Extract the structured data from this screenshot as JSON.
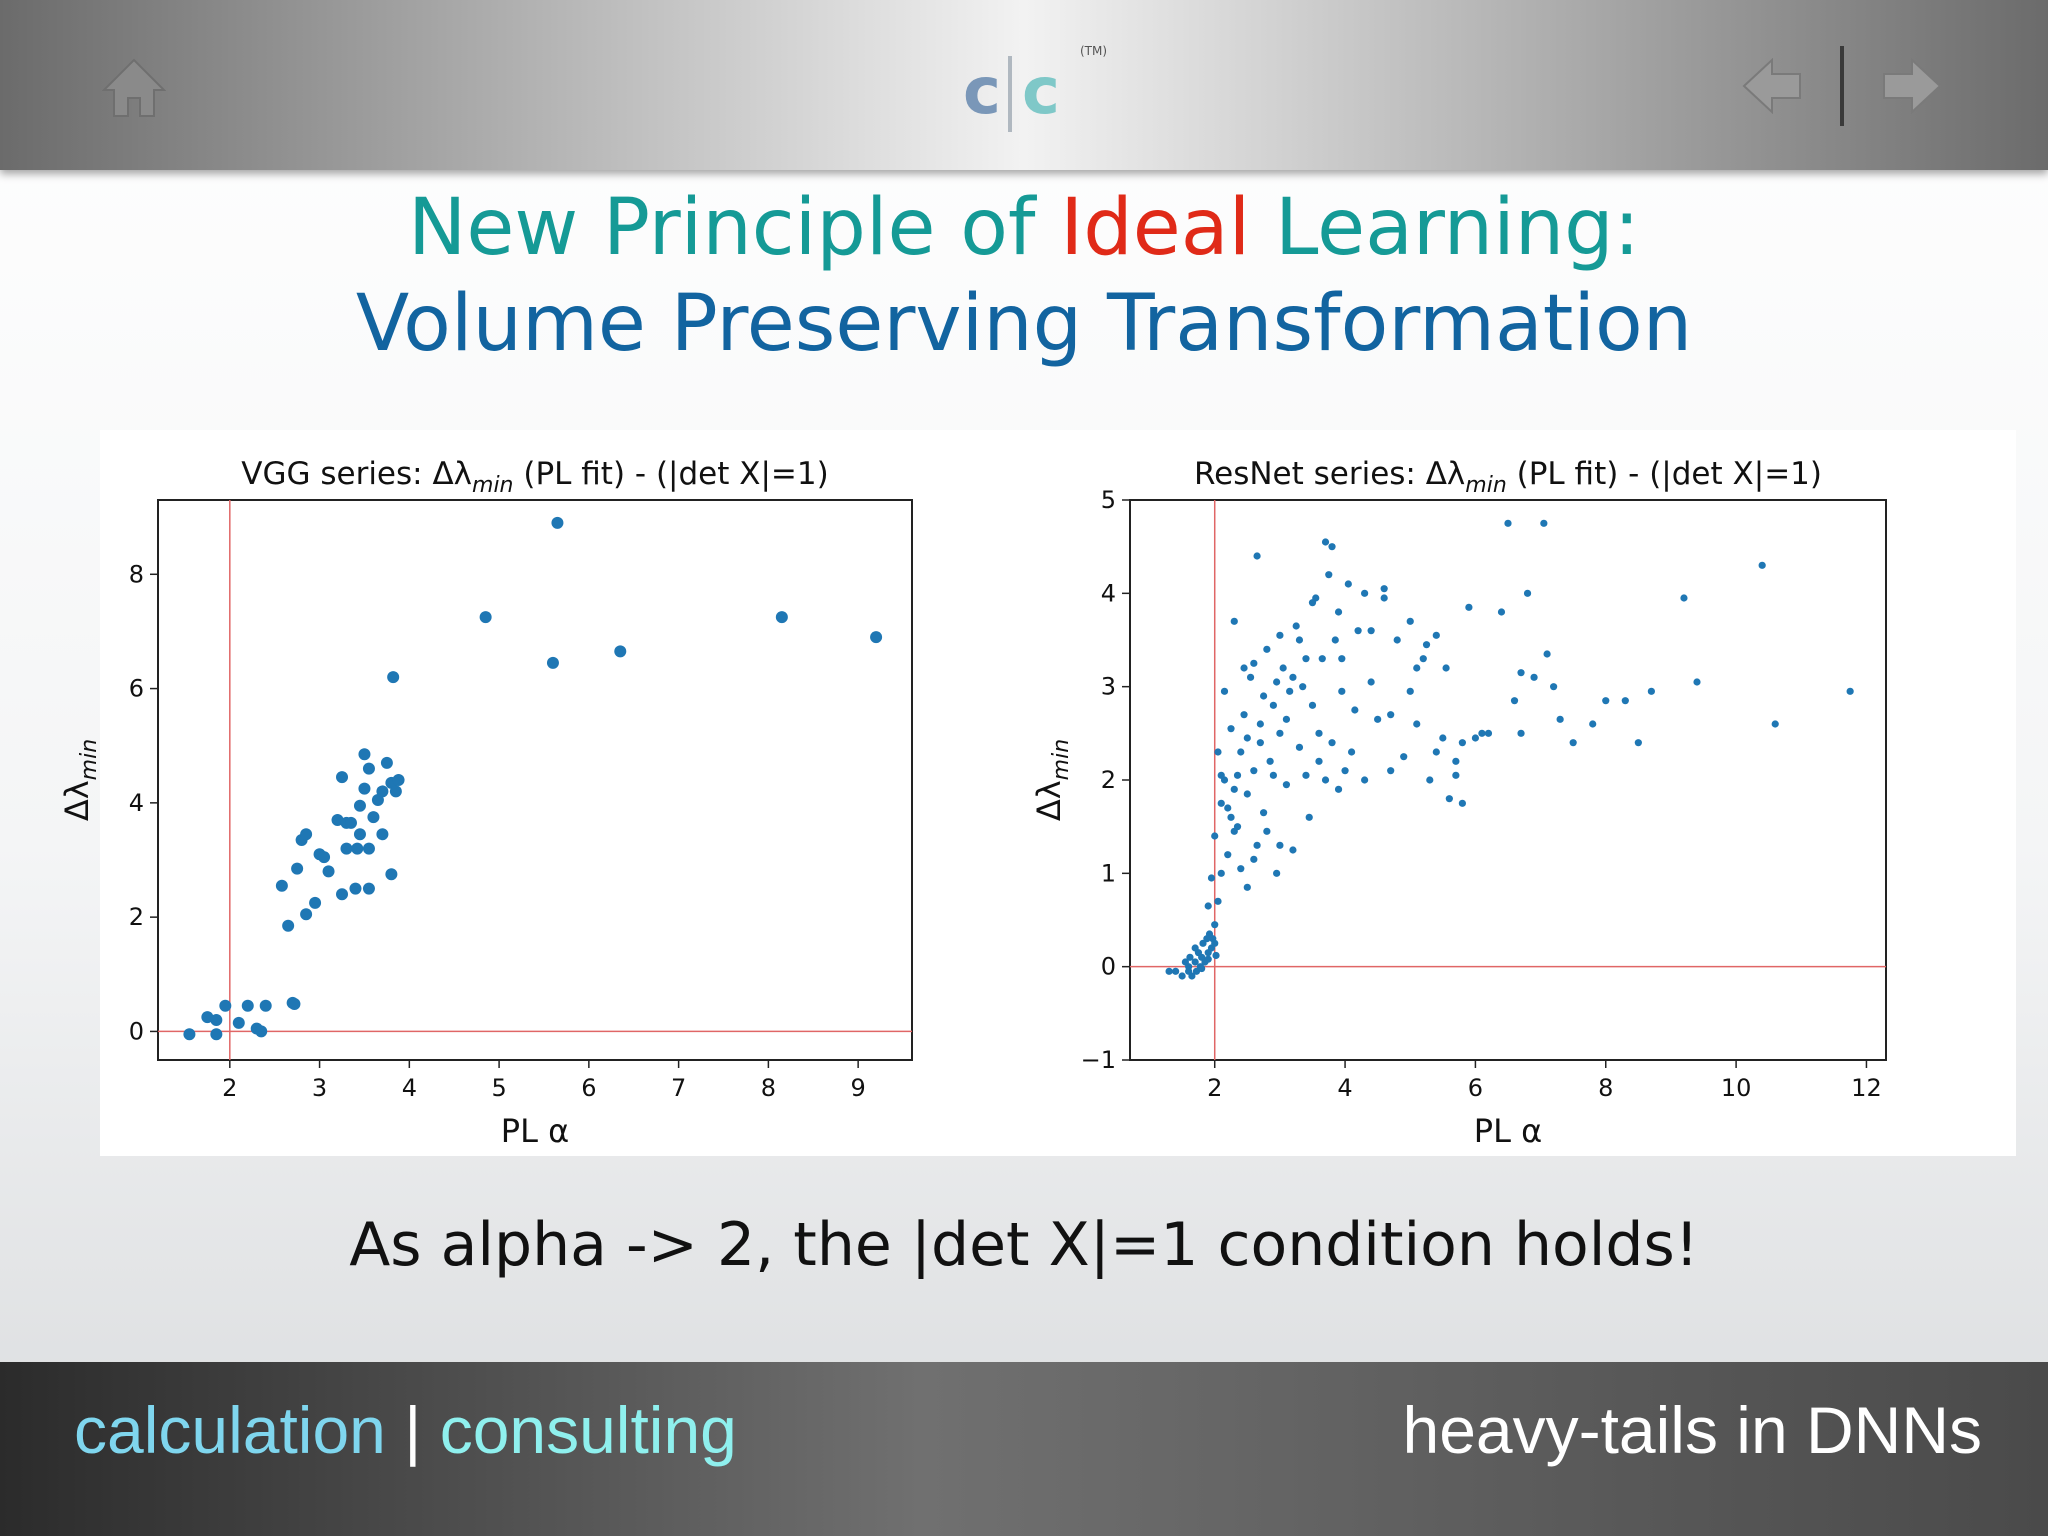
{
  "header": {
    "logo_c1": "c",
    "logo_c2": "c",
    "logo_tm": "(TM)"
  },
  "title": {
    "line1_pre": "New Principle of ",
    "line1_highlight": "Ideal",
    "line1_post": " Learning:",
    "line2": "Volume Preserving Transformation"
  },
  "caption": "As alpha -> 2, the |det X|=1 condition holds!",
  "footer": {
    "left_word1": "calculation",
    "left_sep": " | ",
    "left_word2": "consulting",
    "right": "heavy-tails in DNNs"
  },
  "colors": {
    "title_teal": "#159a96",
    "title_red": "#e02a18",
    "title_blue": "#1264a0",
    "point": "#1f77b4",
    "refline": "#e06666"
  },
  "chart_data": [
    {
      "type": "scatter",
      "title": "VGG series: Δλmin (PL fit) - (|det X|=1)",
      "xlabel": "PL α",
      "ylabel": "Δλmin",
      "xlim": [
        1.2,
        9.6
      ],
      "ylim": [
        -0.5,
        9.3
      ],
      "xticks": [
        2,
        3,
        4,
        5,
        6,
        7,
        8,
        9
      ],
      "yticks": [
        0,
        2,
        4,
        6,
        8
      ],
      "vline": 2,
      "hline": 0,
      "grid": false,
      "points": [
        [
          1.55,
          -0.05
        ],
        [
          1.75,
          0.25
        ],
        [
          1.85,
          0.2
        ],
        [
          1.85,
          -0.05
        ],
        [
          1.95,
          0.45
        ],
        [
          2.1,
          0.15
        ],
        [
          2.2,
          0.45
        ],
        [
          2.3,
          0.05
        ],
        [
          2.35,
          0.0
        ],
        [
          2.4,
          0.45
        ],
        [
          2.7,
          0.5
        ],
        [
          2.72,
          0.48
        ],
        [
          2.58,
          2.55
        ],
        [
          2.65,
          1.85
        ],
        [
          2.75,
          2.85
        ],
        [
          2.85,
          2.05
        ],
        [
          2.8,
          3.35
        ],
        [
          2.85,
          3.45
        ],
        [
          2.95,
          2.25
        ],
        [
          3.0,
          3.1
        ],
        [
          3.05,
          3.05
        ],
        [
          3.1,
          2.8
        ],
        [
          3.2,
          3.7
        ],
        [
          3.25,
          4.45
        ],
        [
          3.25,
          2.4
        ],
        [
          3.3,
          3.65
        ],
        [
          3.3,
          3.2
        ],
        [
          3.35,
          3.65
        ],
        [
          3.4,
          2.5
        ],
        [
          3.42,
          3.2
        ],
        [
          3.45,
          3.45
        ],
        [
          3.45,
          3.95
        ],
        [
          3.5,
          4.85
        ],
        [
          3.5,
          4.25
        ],
        [
          3.55,
          3.2
        ],
        [
          3.55,
          2.5
        ],
        [
          3.55,
          4.6
        ],
        [
          3.6,
          3.75
        ],
        [
          3.65,
          4.05
        ],
        [
          3.7,
          3.45
        ],
        [
          3.7,
          4.2
        ],
        [
          3.75,
          4.7
        ],
        [
          3.8,
          4.35
        ],
        [
          3.8,
          2.75
        ],
        [
          3.85,
          4.2
        ],
        [
          3.88,
          4.4
        ],
        [
          3.82,
          6.2
        ],
        [
          4.85,
          7.25
        ],
        [
          5.6,
          6.45
        ],
        [
          5.65,
          8.9
        ],
        [
          6.35,
          6.65
        ],
        [
          8.15,
          7.25
        ],
        [
          9.2,
          6.9
        ]
      ]
    },
    {
      "type": "scatter",
      "title": "ResNet series: Δλmin (PL fit) - (|det X|=1)",
      "xlabel": "PL α",
      "ylabel": "Δλmin",
      "xlim": [
        0.7,
        12.3
      ],
      "ylim": [
        -1,
        5
      ],
      "xticks": [
        2,
        4,
        6,
        8,
        10,
        12
      ],
      "yticks": [
        -1,
        0,
        1,
        2,
        3,
        4,
        5
      ],
      "vline": 2,
      "hline": 0,
      "grid": false,
      "points": [
        [
          1.3,
          -0.05
        ],
        [
          1.4,
          -0.05
        ],
        [
          1.5,
          -0.1
        ],
        [
          1.55,
          0.05
        ],
        [
          1.6,
          -0.05
        ],
        [
          1.62,
          0.1
        ],
        [
          1.65,
          -0.1
        ],
        [
          1.7,
          0.05
        ],
        [
          1.72,
          -0.05
        ],
        [
          1.75,
          0.15
        ],
        [
          1.78,
          0.0
        ],
        [
          1.8,
          0.1
        ],
        [
          1.82,
          0.25
        ],
        [
          1.85,
          0.05
        ],
        [
          1.88,
          0.3
        ],
        [
          1.9,
          0.15
        ],
        [
          1.92,
          0.35
        ],
        [
          1.95,
          0.2
        ],
        [
          1.97,
          0.3
        ],
        [
          2.0,
          0.25
        ],
        [
          1.6,
          0.0
        ],
        [
          1.7,
          0.2
        ],
        [
          1.8,
          -0.02
        ],
        [
          1.9,
          0.08
        ],
        [
          2.02,
          0.12
        ],
        [
          1.9,
          0.65
        ],
        [
          1.95,
          0.95
        ],
        [
          2.0,
          0.45
        ],
        [
          2.05,
          0.7
        ],
        [
          2.1,
          1.0
        ],
        [
          2.0,
          1.4
        ],
        [
          2.1,
          1.75
        ],
        [
          2.15,
          2.0
        ],
        [
          2.2,
          1.2
        ],
        [
          2.25,
          2.55
        ],
        [
          2.3,
          1.9
        ],
        [
          2.35,
          1.5
        ],
        [
          2.4,
          2.3
        ],
        [
          2.45,
          2.7
        ],
        [
          2.5,
          1.85
        ],
        [
          2.55,
          3.1
        ],
        [
          2.6,
          2.1
        ],
        [
          2.65,
          1.3
        ],
        [
          2.7,
          2.4
        ],
        [
          2.75,
          1.65
        ],
        [
          2.8,
          3.4
        ],
        [
          2.85,
          2.2
        ],
        [
          2.9,
          2.8
        ],
        [
          2.95,
          1.0
        ],
        [
          3.0,
          2.5
        ],
        [
          3.05,
          3.2
        ],
        [
          3.1,
          1.95
        ],
        [
          3.15,
          2.95
        ],
        [
          3.2,
          1.25
        ],
        [
          3.25,
          3.65
        ],
        [
          3.3,
          2.35
        ],
        [
          3.35,
          3.0
        ],
        [
          3.4,
          2.05
        ],
        [
          3.45,
          1.6
        ],
        [
          3.5,
          2.8
        ],
        [
          3.55,
          3.95
        ],
        [
          3.6,
          2.2
        ],
        [
          3.65,
          3.3
        ],
        [
          3.7,
          2.0
        ],
        [
          3.75,
          4.2
        ],
        [
          3.8,
          2.4
        ],
        [
          3.85,
          3.5
        ],
        [
          3.9,
          1.9
        ],
        [
          3.95,
          2.95
        ],
        [
          4.0,
          2.1
        ],
        [
          2.1,
          2.05
        ],
        [
          2.2,
          1.7
        ],
        [
          2.3,
          1.45
        ],
        [
          2.4,
          1.05
        ],
        [
          2.5,
          0.85
        ],
        [
          2.6,
          1.15
        ],
        [
          2.7,
          2.6
        ],
        [
          2.8,
          1.45
        ],
        [
          2.9,
          2.05
        ],
        [
          3.0,
          1.3
        ],
        [
          2.05,
          2.3
        ],
        [
          2.15,
          2.95
        ],
        [
          2.25,
          1.6
        ],
        [
          2.35,
          2.05
        ],
        [
          2.5,
          2.45
        ],
        [
          2.6,
          3.25
        ],
        [
          2.75,
          2.9
        ],
        [
          2.95,
          3.05
        ],
        [
          3.1,
          2.65
        ],
        [
          3.3,
          3.5
        ],
        [
          3.5,
          3.9
        ],
        [
          3.7,
          4.55
        ],
        [
          3.8,
          4.5
        ],
        [
          3.95,
          3.3
        ],
        [
          4.1,
          2.3
        ],
        [
          4.2,
          3.6
        ],
        [
          4.3,
          2.0
        ],
        [
          4.4,
          3.05
        ],
        [
          4.5,
          2.65
        ],
        [
          4.6,
          3.95
        ],
        [
          4.7,
          2.1
        ],
        [
          4.8,
          3.5
        ],
        [
          4.9,
          2.25
        ],
        [
          5.0,
          3.7
        ],
        [
          5.1,
          2.6
        ],
        [
          5.2,
          3.3
        ],
        [
          5.3,
          2.0
        ],
        [
          5.4,
          3.55
        ],
        [
          5.5,
          2.45
        ],
        [
          5.6,
          1.8
        ],
        [
          5.7,
          2.2
        ],
        [
          5.8,
          1.75
        ],
        [
          5.9,
          3.85
        ],
        [
          6.0,
          2.45
        ],
        [
          6.1,
          2.5
        ],
        [
          4.05,
          4.1
        ],
        [
          4.3,
          4.0
        ],
        [
          4.6,
          4.05
        ],
        [
          5.1,
          3.2
        ],
        [
          5.4,
          2.3
        ],
        [
          5.7,
          2.05
        ],
        [
          6.2,
          2.5
        ],
        [
          6.4,
          3.8
        ],
        [
          6.6,
          2.85
        ],
        [
          6.7,
          2.5
        ],
        [
          6.5,
          4.75
        ],
        [
          6.8,
          4.0
        ],
        [
          6.9,
          3.1
        ],
        [
          7.05,
          4.75
        ],
        [
          7.1,
          3.35
        ],
        [
          7.2,
          3.0
        ],
        [
          7.3,
          2.65
        ],
        [
          6.7,
          3.15
        ],
        [
          7.5,
          2.4
        ],
        [
          7.8,
          2.6
        ],
        [
          8.0,
          2.85
        ],
        [
          8.3,
          2.85
        ],
        [
          8.5,
          2.4
        ],
        [
          8.7,
          2.95
        ],
        [
          9.2,
          3.95
        ],
        [
          9.4,
          3.05
        ],
        [
          10.4,
          4.3
        ],
        [
          10.6,
          2.6
        ],
        [
          11.75,
          2.95
        ],
        [
          2.3,
          3.7
        ],
        [
          2.45,
          3.2
        ],
        [
          2.65,
          4.4
        ],
        [
          3.0,
          3.55
        ],
        [
          3.2,
          3.1
        ],
        [
          3.4,
          3.3
        ],
        [
          3.6,
          2.5
        ],
        [
          3.9,
          3.8
        ],
        [
          4.15,
          2.75
        ],
        [
          4.4,
          3.6
        ],
        [
          4.7,
          2.7
        ],
        [
          5.0,
          2.95
        ],
        [
          5.25,
          3.45
        ],
        [
          5.55,
          3.2
        ],
        [
          5.8,
          2.4
        ]
      ]
    }
  ]
}
